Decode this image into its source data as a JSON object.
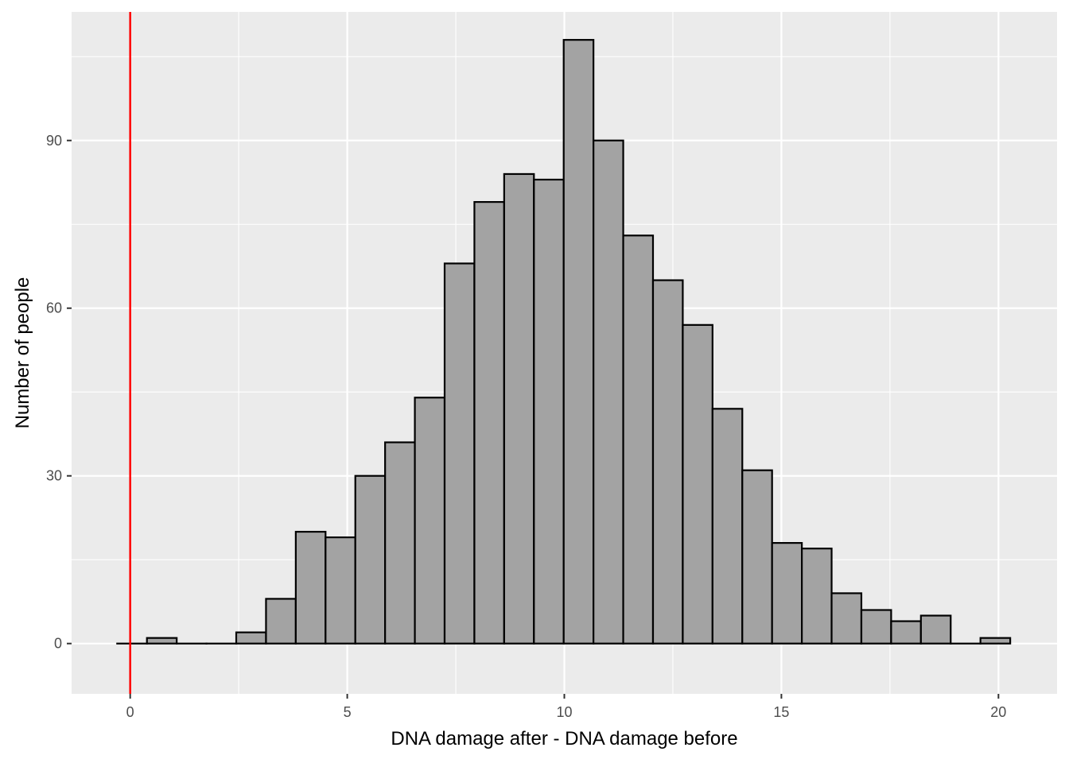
{
  "chart_data": {
    "type": "bar",
    "title": "",
    "xlabel": "DNA damage after - DNA damage before",
    "ylabel": "Number of people",
    "xlim": [
      -1.35,
      21.35
    ],
    "ylim": [
      -9,
      113
    ],
    "x_ticks": [
      0,
      5,
      10,
      15,
      20
    ],
    "x_tick_labels": [
      "0",
      "5",
      "10",
      "15",
      "20"
    ],
    "x_minor_ticks": [
      2.5,
      7.5,
      12.5,
      17.5
    ],
    "y_ticks": [
      0,
      30,
      60,
      90
    ],
    "y_tick_labels": [
      "0",
      "30",
      "60",
      "90"
    ],
    "y_minor_ticks": [
      15,
      45,
      75,
      105
    ],
    "grid": true,
    "bins": {
      "start": -0.3,
      "width": 0.6857,
      "counts": [
        0,
        1,
        0,
        0,
        2,
        8,
        20,
        19,
        30,
        36,
        44,
        68,
        79,
        84,
        83,
        108,
        90,
        73,
        65,
        57,
        42,
        31,
        18,
        17,
        9,
        6,
        4,
        5,
        0,
        1
      ]
    },
    "reference_line": {
      "x": 0,
      "color": "#ff0000"
    },
    "colors": {
      "panel": "#ebebeb",
      "grid": "#ffffff",
      "bar_fill": "#a3a3a3",
      "bar_stroke": "#000000",
      "tick": "#333333"
    }
  }
}
